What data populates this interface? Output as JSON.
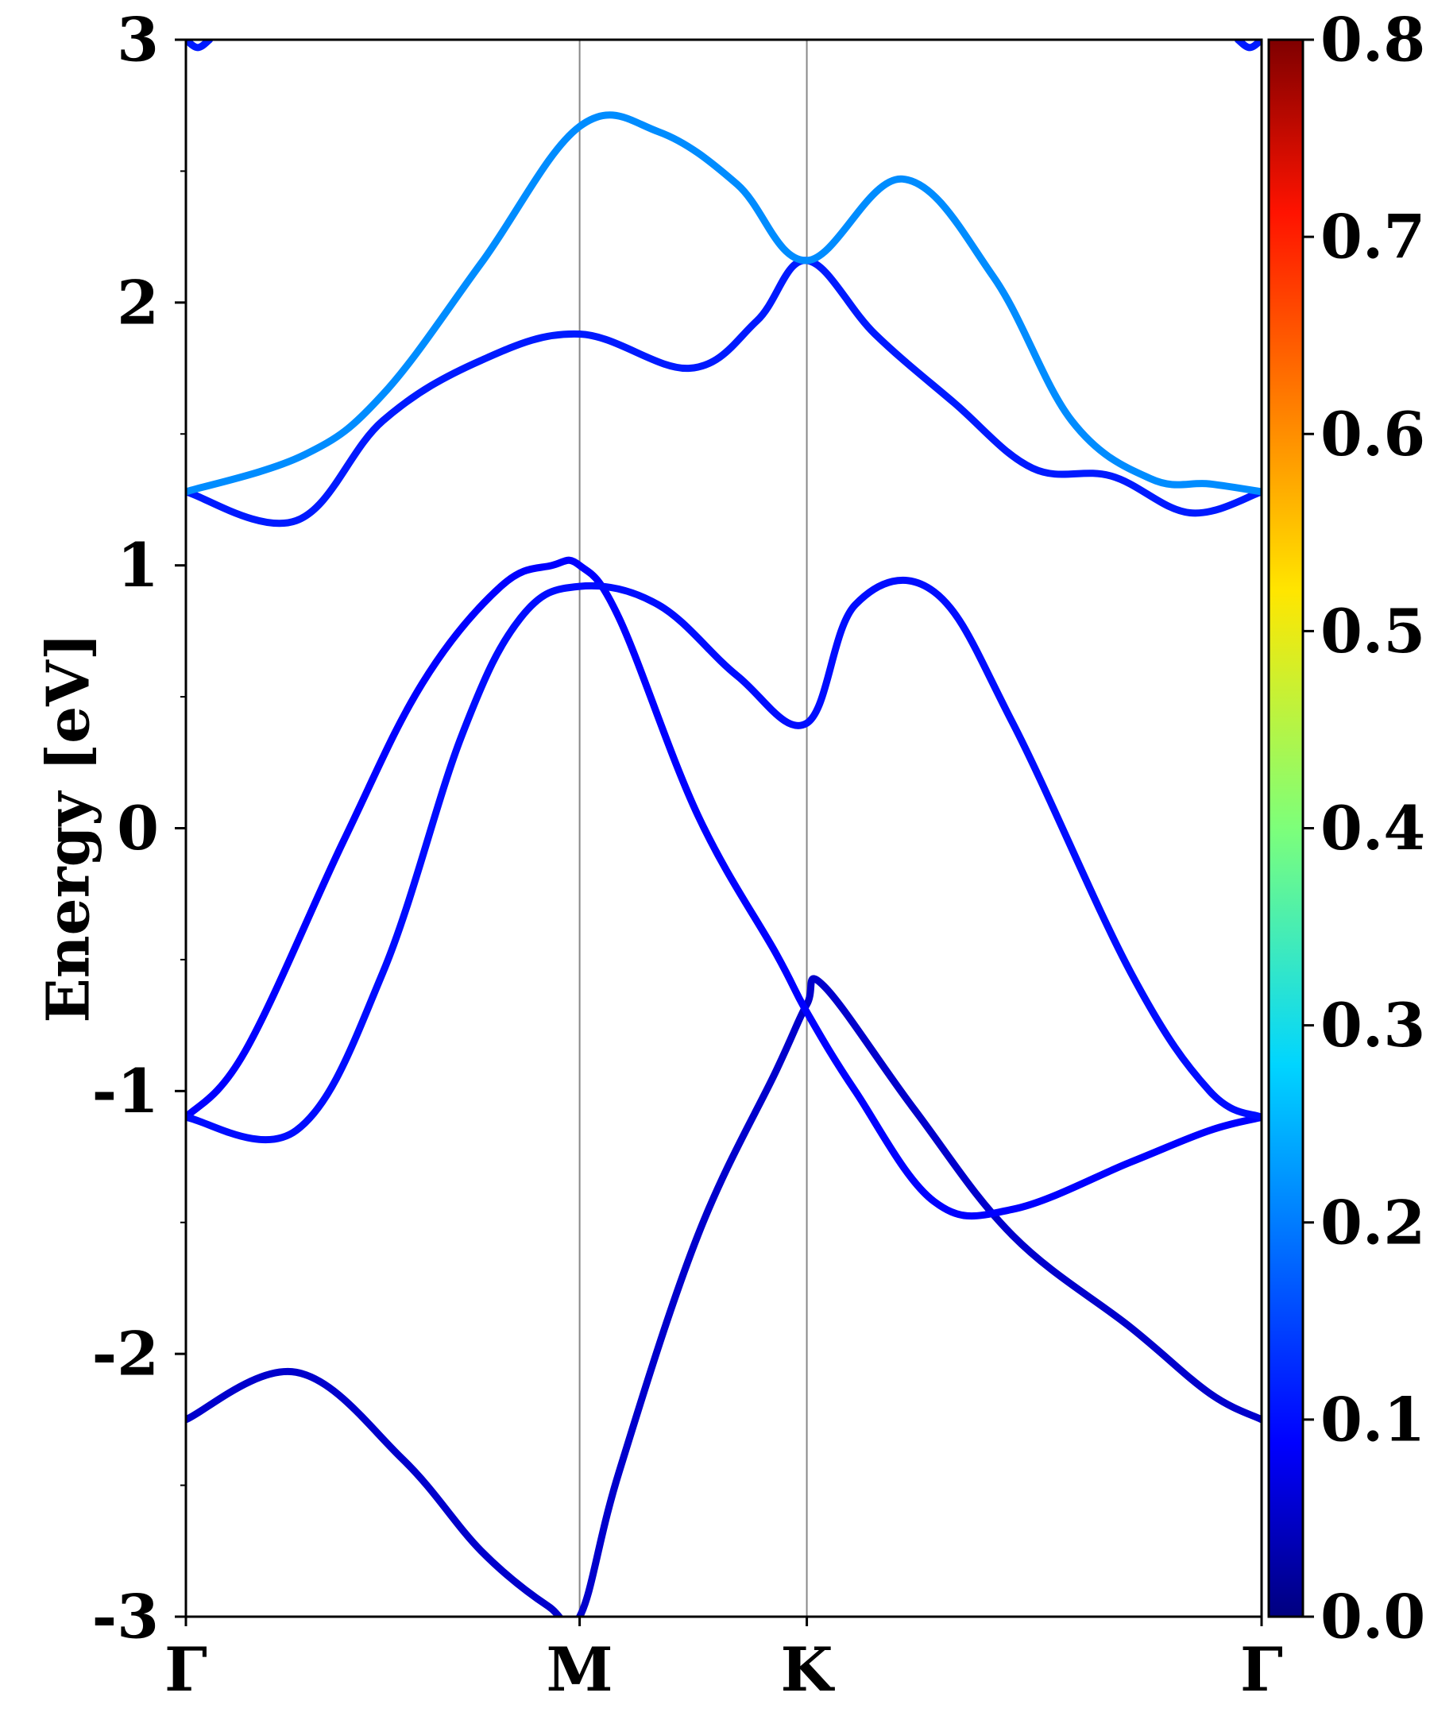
{
  "chart_data": {
    "type": "line",
    "ylabel": "Energy [eV]",
    "xlabel": "",
    "ylim": [
      -3,
      3
    ],
    "xlim": [
      0,
      2.732
    ],
    "yticks": [
      -3,
      -2,
      -1,
      0,
      1,
      2,
      3
    ],
    "yticks_minor": [
      -2.5,
      -1.5,
      -0.5,
      0.5,
      1.5,
      2.5
    ],
    "high_symmetry_points": [
      {
        "label": "Γ",
        "x": 0.0
      },
      {
        "label": "M",
        "x": 1.0
      },
      {
        "label": "K",
        "x": 1.577
      },
      {
        "label": "Γ",
        "x": 2.732
      }
    ],
    "colorbar": {
      "colormap": "jet",
      "range": [
        0.0,
        0.8
      ],
      "ticks": [
        0.0,
        0.1,
        0.2,
        0.3,
        0.4,
        0.5,
        0.6,
        0.7,
        0.8
      ],
      "tick_labels": [
        "0.0",
        "0.1",
        "0.2",
        "0.3",
        "0.4",
        "0.5",
        "0.6",
        "0.7",
        "0.8"
      ]
    },
    "grid": false,
    "series": [
      {
        "color_value": 0.06,
        "x": [
          0,
          0.28,
          0.55,
          0.75,
          0.92,
          1.0,
          1.1,
          1.3,
          1.5,
          1.577,
          1.62,
          1.85,
          2.1,
          2.4,
          2.6,
          2.732
        ],
        "y": [
          -2.25,
          -2.07,
          -2.4,
          -2.75,
          -2.96,
          -3.0,
          -2.45,
          -1.55,
          -0.92,
          -0.67,
          -0.6,
          -1.07,
          -1.55,
          -1.9,
          -2.15,
          -2.25
        ]
      },
      {
        "color_value": 0.1,
        "x": [
          0,
          0.15,
          0.4,
          0.6,
          0.8,
          0.93,
          1.0,
          1.1,
          1.3,
          1.5,
          1.577,
          1.7,
          1.9,
          2.1,
          2.4,
          2.6,
          2.732
        ],
        "y": [
          -1.1,
          -0.85,
          -0.05,
          0.55,
          0.92,
          1.0,
          1.0,
          0.8,
          0.05,
          -0.48,
          -0.7,
          -1.0,
          -1.42,
          -1.45,
          -1.27,
          -1.15,
          -1.1
        ]
      },
      {
        "color_value": 0.11,
        "x": [
          0,
          0.28,
          0.5,
          0.7,
          0.85,
          1.0,
          1.2,
          1.4,
          1.577,
          1.7,
          1.9,
          2.1,
          2.4,
          2.6,
          2.732
        ],
        "y": [
          -1.1,
          -1.15,
          -0.55,
          0.35,
          0.8,
          0.92,
          0.85,
          0.58,
          0.4,
          0.85,
          0.9,
          0.4,
          -0.55,
          -1.0,
          -1.1
        ]
      },
      {
        "color_value": 0.12,
        "x": [
          0,
          0.28,
          0.5,
          0.75,
          1.0,
          1.28,
          1.45,
          1.577,
          1.75,
          1.95,
          2.15,
          2.35,
          2.55,
          2.732
        ],
        "y": [
          1.28,
          1.17,
          1.55,
          1.78,
          1.88,
          1.75,
          1.93,
          2.16,
          1.88,
          1.62,
          1.37,
          1.34,
          1.2,
          1.28
        ]
      },
      {
        "color_value": 0.21,
        "x": [
          0,
          0.3,
          0.5,
          0.75,
          1.0,
          1.2,
          1.4,
          1.577,
          1.82,
          2.05,
          2.25,
          2.45,
          2.6,
          2.732
        ],
        "y": [
          1.28,
          1.42,
          1.65,
          2.15,
          2.67,
          2.65,
          2.45,
          2.16,
          2.47,
          2.1,
          1.55,
          1.33,
          1.31,
          1.28
        ]
      },
      {
        "color_value": 0.12,
        "x": [
          0,
          0.03,
          0.06
        ],
        "y": [
          3.0,
          2.97,
          3.0
        ]
      },
      {
        "color_value": 0.12,
        "x": [
          2.672,
          2.702,
          2.732
        ],
        "y": [
          3.0,
          2.97,
          3.0
        ]
      }
    ]
  }
}
